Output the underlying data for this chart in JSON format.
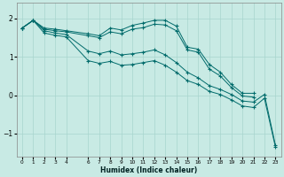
{
  "xlabel": "Humidex (Indice chaleur)",
  "xlim": [
    -0.5,
    23.5
  ],
  "ylim": [
    -1.6,
    2.4
  ],
  "yticks": [
    -1,
    0,
    1,
    2
  ],
  "xticks": [
    0,
    1,
    2,
    3,
    4,
    6,
    7,
    8,
    9,
    10,
    11,
    12,
    13,
    14,
    15,
    16,
    17,
    18,
    19,
    20,
    21,
    22,
    23
  ],
  "bg_color": "#c8eae4",
  "line_color": "#006b6b",
  "grid_color": "#a8d5ce",
  "lines": [
    {
      "x": [
        0,
        1,
        2,
        3,
        4,
        6,
        7,
        8,
        9,
        10,
        11,
        12,
        13,
        14,
        15,
        16,
        17,
        18,
        19,
        20,
        21
      ],
      "y": [
        1.75,
        1.95,
        1.75,
        1.72,
        1.68,
        1.6,
        1.55,
        1.75,
        1.7,
        1.82,
        1.88,
        1.95,
        1.95,
        1.8,
        1.25,
        1.2,
        0.8,
        0.6,
        0.28,
        0.05,
        0.05
      ]
    },
    {
      "x": [
        0,
        1,
        2,
        3,
        4,
        6,
        7,
        8,
        9,
        10,
        11,
        12,
        13,
        14,
        15,
        16,
        17,
        18,
        19,
        20,
        21
      ],
      "y": [
        1.75,
        1.95,
        1.72,
        1.68,
        1.65,
        1.55,
        1.5,
        1.65,
        1.6,
        1.72,
        1.76,
        1.85,
        1.83,
        1.68,
        1.18,
        1.12,
        0.68,
        0.5,
        0.2,
        -0.02,
        -0.05
      ]
    },
    {
      "x": [
        0,
        1,
        2,
        3,
        4,
        6,
        7,
        8,
        9,
        10,
        11,
        12,
        13,
        14,
        15,
        16,
        17,
        18,
        19,
        20,
        21,
        22,
        23
      ],
      "y": [
        1.75,
        1.95,
        1.68,
        1.62,
        1.58,
        1.15,
        1.08,
        1.15,
        1.05,
        1.08,
        1.12,
        1.18,
        1.05,
        0.85,
        0.6,
        0.45,
        0.25,
        0.15,
        0.02,
        -0.15,
        -0.18,
        0.02,
        -1.3
      ]
    },
    {
      "x": [
        0,
        1,
        2,
        3,
        4,
        6,
        7,
        8,
        9,
        10,
        11,
        12,
        13,
        14,
        15,
        16,
        17,
        18,
        19,
        20,
        21,
        22,
        23
      ],
      "y": [
        1.75,
        1.95,
        1.62,
        1.56,
        1.52,
        0.9,
        0.83,
        0.88,
        0.78,
        0.8,
        0.85,
        0.9,
        0.78,
        0.6,
        0.38,
        0.28,
        0.1,
        0.02,
        -0.12,
        -0.28,
        -0.32,
        -0.08,
        -1.35
      ]
    }
  ]
}
